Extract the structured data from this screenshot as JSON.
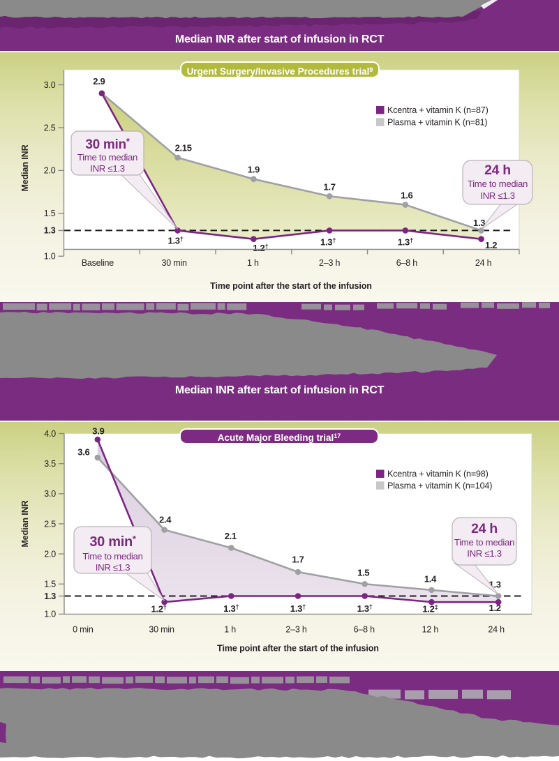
{
  "banners": {
    "top": {
      "title": "Median INR after start of infusion in RCT"
    },
    "middle": {
      "title": "Median INR after start of infusion in RCT"
    }
  },
  "colors": {
    "brand_purple": "#7a2d80",
    "kcentra_line": "#7c2483",
    "plasma_line": "#a0a0a4",
    "plasma_swatch": "#c7c7c9",
    "olive_badge": "#b2ba3e",
    "redaction_gray": "#8a8a8a",
    "ink": "#272325"
  },
  "chart_data": [
    {
      "type": "line",
      "title": "Urgent Surgery/Invasive Procedures trial",
      "title_superscript": "9",
      "x_categories": [
        "Baseline",
        "30 min",
        "1 h",
        "2–3 h",
        "6–8 h",
        "24 h"
      ],
      "xlabel": "Time point after the start of the infusion",
      "ylabel": "Median INR",
      "ylim": [
        1.0,
        3.0
      ],
      "yticks": [
        {
          "value": 3.0,
          "label": "3.0",
          "bold": false
        },
        {
          "value": 2.5,
          "label": "2.5",
          "bold": false
        },
        {
          "value": 2.0,
          "label": "2.0",
          "bold": false
        },
        {
          "value": 1.5,
          "label": "1.5",
          "bold": false
        },
        {
          "value": 1.3,
          "label": "1.3",
          "bold": true
        },
        {
          "value": 1.0,
          "label": "1.0",
          "bold": false
        }
      ],
      "reference_line": 1.3,
      "series": [
        {
          "name": "Kcentra + vitamin K (n=87)",
          "color": "#7c2483",
          "values": [
            2.9,
            1.3,
            1.2,
            1.3,
            1.3,
            1.2
          ],
          "labels": [
            "",
            "1.3†",
            "1.2†",
            "1.3†",
            "1.3†",
            "1.2"
          ]
        },
        {
          "name": "Plasma + vitamin K (n=81)",
          "color": "#a0a0a4",
          "values": [
            2.9,
            2.15,
            1.9,
            1.7,
            1.6,
            1.3
          ],
          "labels": [
            "2.9",
            "2.15",
            "1.9",
            "1.7",
            "1.6",
            "1.3"
          ]
        }
      ],
      "legend": [
        {
          "label": "Kcentra + vitamin K (n=87)",
          "color": "#7c2483"
        },
        {
          "label": "Plasma + vitamin K (n=81)",
          "color": "#c7c7c9"
        }
      ],
      "callouts": [
        {
          "title": "30 min",
          "sup": "*",
          "lines": [
            "Time to median",
            "INR ≤1.3"
          ]
        },
        {
          "title": "24 h",
          "sup": "",
          "lines": [
            "Time to median",
            "INR ≤1.3"
          ]
        }
      ]
    },
    {
      "type": "line",
      "title": "Acute Major Bleeding trial",
      "title_superscript": "17",
      "x_categories": [
        "0 min",
        "30 min",
        "1 h",
        "2–3 h",
        "6–8 h",
        "12 h",
        "24 h"
      ],
      "xlabel": "Time point after the start of the infusion",
      "ylabel": "Median INR",
      "ylim": [
        1.0,
        4.0
      ],
      "yticks": [
        {
          "value": 4.0,
          "label": "4.0",
          "bold": false
        },
        {
          "value": 3.5,
          "label": "3.5",
          "bold": false
        },
        {
          "value": 3.0,
          "label": "3.0",
          "bold": false
        },
        {
          "value": 2.5,
          "label": "2.5",
          "bold": false
        },
        {
          "value": 2.0,
          "label": "2.0",
          "bold": false
        },
        {
          "value": 1.5,
          "label": "1.5",
          "bold": false
        },
        {
          "value": 1.3,
          "label": "1.3",
          "bold": true
        },
        {
          "value": 1.0,
          "label": "1.0",
          "bold": false
        }
      ],
      "reference_line": 1.3,
      "series": [
        {
          "name": "Kcentra + vitamin K (n=98)",
          "color": "#7c2483",
          "values": [
            3.9,
            1.2,
            1.3,
            1.3,
            1.3,
            1.2,
            1.2
          ],
          "labels": [
            "3.9",
            "1.2†",
            "1.3†",
            "1.3†",
            "1.3†",
            "1.2‡",
            "1.2"
          ]
        },
        {
          "name": "Plasma + vitamin K (n=104)",
          "color": "#a0a0a4",
          "values": [
            3.6,
            2.4,
            2.1,
            1.7,
            1.5,
            1.4,
            1.3
          ],
          "labels": [
            "3.6",
            "2.4",
            "2.1",
            "1.7",
            "1.5",
            "1.4",
            "1.3"
          ]
        }
      ],
      "legend": [
        {
          "label": "Kcentra + vitamin K (n=98)",
          "color": "#7c2483"
        },
        {
          "label": "Plasma + vitamin K (n=104)",
          "color": "#c7c7c9"
        }
      ],
      "callouts": [
        {
          "title": "30 min",
          "sup": "*",
          "lines": [
            "Time to median",
            "INR ≤1.3"
          ]
        },
        {
          "title": "24 h",
          "sup": "",
          "lines": [
            "Time to median",
            "INR ≤1.3"
          ]
        }
      ]
    }
  ]
}
